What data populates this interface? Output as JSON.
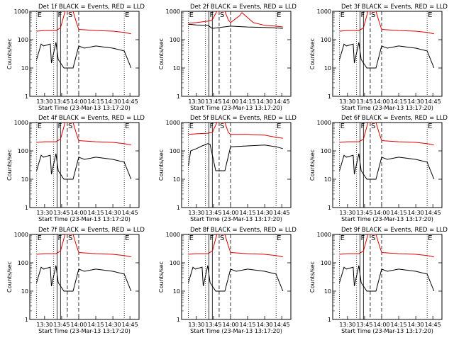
{
  "figure": {
    "title_suffix": " BLACK = Events, RED = LLD",
    "xlabel": "Start Time (23-Mar-13 13:17:20)",
    "ylabel": "Counts/sec"
  },
  "flag_labels": {
    "E": "E",
    "F": "F",
    "S": "S"
  },
  "colors": {
    "events": "#000000",
    "lld": "#dd0000"
  },
  "chart_data": [
    {
      "type": "line",
      "title": "Det 1f BLACK = Events, RED = LLD",
      "xlabel": "Start Time (23-Mar-13 13:17:20)",
      "ylabel": "Counts/sec",
      "yscale": "log",
      "ylim": [
        1,
        1000
      ],
      "yticks": [
        "1",
        "10",
        "100",
        "1000"
      ],
      "xticks": [
        "13:30",
        "13:45",
        "14:00",
        "14:15",
        "14:30",
        "14:45"
      ],
      "xlim": [
        "13:17",
        "14:53"
      ],
      "series": [
        {
          "name": "BLACK = Events",
          "color": "#000000",
          "x": [
            "13:23",
            "13:27",
            "13:29",
            "13:35",
            "13:36",
            "13:40",
            "13:42",
            "13:47",
            "13:55",
            "14:00",
            "14:05",
            "14:15",
            "14:30",
            "14:40",
            "14:46"
          ],
          "y": [
            20,
            70,
            60,
            70,
            15,
            80,
            20,
            10,
            10,
            60,
            50,
            60,
            50,
            40,
            10
          ]
        },
        {
          "name": "RED = LLD",
          "color": "#dd0000",
          "x": [
            "13:23",
            "13:30",
            "13:40",
            "13:44",
            "13:48",
            "13:51",
            "13:55",
            "13:58",
            "14:00",
            "14:15",
            "14:30",
            "14:40",
            "14:46"
          ],
          "y": [
            200,
            210,
            210,
            260,
            1000,
            1000,
            1000,
            400,
            230,
            210,
            200,
            180,
            160
          ]
        }
      ]
    },
    {
      "type": "line",
      "title": "Det 2f BLACK = Events, RED = LLD",
      "xlabel": "Start Time (23-Mar-13 13:17:20)",
      "ylabel": "Counts/sec",
      "yscale": "log",
      "ylim": [
        1,
        1000
      ],
      "yticks": [
        "1",
        "10",
        "100",
        "1000"
      ],
      "xticks": [
        "13:30",
        "13:45",
        "14:00",
        "14:15",
        "14:30",
        "14:45"
      ],
      "xlim": [
        "13:17",
        "14:53"
      ],
      "series": [
        {
          "name": "BLACK = Events",
          "color": "#000000",
          "x": [
            "13:23",
            "13:30",
            "13:40",
            "13:44",
            "14:00",
            "14:15",
            "14:30",
            "14:40",
            "14:46"
          ],
          "y": [
            350,
            330,
            320,
            250,
            300,
            280,
            270,
            260,
            250
          ]
        },
        {
          "name": "RED = LLD",
          "color": "#dd0000",
          "x": [
            "13:23",
            "13:30",
            "13:40",
            "13:44",
            "13:48",
            "13:51",
            "13:55",
            "13:58",
            "14:00",
            "14:08",
            "14:10",
            "14:15",
            "14:20",
            "14:30",
            "14:40",
            "14:46"
          ],
          "y": [
            380,
            400,
            450,
            500,
            1000,
            1000,
            1000,
            500,
            400,
            700,
            900,
            600,
            400,
            320,
            300,
            280
          ]
        }
      ]
    },
    {
      "type": "line",
      "title": "Det 3f BLACK = Events, RED = LLD",
      "xlabel": "Start Time (23-Mar-13 13:17:20)",
      "ylabel": "Counts/sec",
      "yscale": "log",
      "ylim": [
        1,
        1000
      ],
      "yticks": [
        "1",
        "10",
        "100",
        "1000"
      ],
      "xticks": [
        "13:30",
        "13:45",
        "14:00",
        "14:15",
        "14:30",
        "14:45"
      ],
      "xlim": [
        "13:17",
        "14:53"
      ],
      "series": [
        {
          "name": "BLACK = Events",
          "color": "#000000",
          "x": [
            "13:23",
            "13:27",
            "13:29",
            "13:35",
            "13:36",
            "13:40",
            "13:42",
            "13:47",
            "13:55",
            "14:00",
            "14:05",
            "14:15",
            "14:30",
            "14:40",
            "14:46"
          ],
          "y": [
            20,
            70,
            60,
            70,
            15,
            80,
            20,
            10,
            10,
            60,
            50,
            60,
            50,
            40,
            10
          ]
        },
        {
          "name": "RED = LLD",
          "color": "#dd0000",
          "x": [
            "13:23",
            "13:30",
            "13:40",
            "13:44",
            "13:48",
            "13:51",
            "13:55",
            "13:58",
            "14:00",
            "14:15",
            "14:30",
            "14:40",
            "14:46"
          ],
          "y": [
            200,
            210,
            210,
            260,
            1000,
            1000,
            1000,
            400,
            230,
            210,
            200,
            180,
            160
          ]
        }
      ]
    },
    {
      "type": "line",
      "title": "Det 4f BLACK = Events, RED = LLD",
      "xlabel": "Start Time (23-Mar-13 13:17:20)",
      "ylabel": "Counts/sec",
      "yscale": "log",
      "ylim": [
        1,
        1000
      ],
      "yticks": [
        "1",
        "10",
        "100",
        "1000"
      ],
      "xticks": [
        "13:30",
        "13:45",
        "14:00",
        "14:15",
        "14:30",
        "14:45"
      ],
      "xlim": [
        "13:17",
        "14:53"
      ],
      "series": [
        {
          "name": "BLACK = Events",
          "color": "#000000",
          "x": [
            "13:23",
            "13:27",
            "13:29",
            "13:35",
            "13:36",
            "13:40",
            "13:42",
            "13:47",
            "13:55",
            "14:00",
            "14:05",
            "14:15",
            "14:30",
            "14:40",
            "14:46"
          ],
          "y": [
            20,
            70,
            60,
            70,
            15,
            80,
            20,
            10,
            10,
            60,
            50,
            60,
            50,
            40,
            10
          ]
        },
        {
          "name": "RED = LLD",
          "color": "#dd0000",
          "x": [
            "13:23",
            "13:30",
            "13:40",
            "13:44",
            "13:48",
            "13:51",
            "13:55",
            "13:58",
            "14:00",
            "14:15",
            "14:30",
            "14:40",
            "14:46"
          ],
          "y": [
            200,
            210,
            210,
            260,
            1000,
            1000,
            1000,
            400,
            230,
            210,
            200,
            180,
            160
          ]
        }
      ]
    },
    {
      "type": "line",
      "title": "Det 5f BLACK = Events, RED = LLD",
      "xlabel": "Start Time (23-Mar-13 13:17:20)",
      "ylabel": "Counts/sec",
      "yscale": "log",
      "ylim": [
        1,
        1000
      ],
      "yticks": [
        "1",
        "10",
        "100",
        "1000"
      ],
      "xticks": [
        "13:30",
        "13:45",
        "14:00",
        "14:15",
        "14:30",
        "14:45"
      ],
      "xlim": [
        "13:17",
        "14:53"
      ],
      "series": [
        {
          "name": "BLACK = Events",
          "color": "#000000",
          "x": [
            "13:23",
            "13:25",
            "13:30",
            "13:35",
            "13:40",
            "13:42",
            "13:47",
            "13:55",
            "14:00",
            "14:15",
            "14:30",
            "14:40",
            "14:46"
          ],
          "y": [
            30,
            100,
            120,
            150,
            180,
            170,
            20,
            20,
            140,
            150,
            160,
            140,
            120
          ]
        },
        {
          "name": "RED = LLD",
          "color": "#dd0000",
          "x": [
            "13:23",
            "13:30",
            "13:40",
            "13:44",
            "13:48",
            "13:51",
            "13:55",
            "13:58",
            "14:00",
            "14:15",
            "14:30",
            "14:40",
            "14:46"
          ],
          "y": [
            380,
            400,
            420,
            450,
            1000,
            1000,
            1000,
            450,
            380,
            380,
            360,
            300,
            280
          ]
        }
      ]
    },
    {
      "type": "line",
      "title": "Det 6f BLACK = Events, RED = LLD",
      "xlabel": "Start Time (23-Mar-13 13:17:20)",
      "ylabel": "Counts/sec",
      "yscale": "log",
      "ylim": [
        1,
        1000
      ],
      "yticks": [
        "1",
        "10",
        "100",
        "1000"
      ],
      "xticks": [
        "13:30",
        "13:45",
        "14:00",
        "14:15",
        "14:30",
        "14:45"
      ],
      "xlim": [
        "13:17",
        "14:53"
      ],
      "series": [
        {
          "name": "BLACK = Events",
          "color": "#000000",
          "x": [
            "13:23",
            "13:27",
            "13:29",
            "13:35",
            "13:36",
            "13:40",
            "13:42",
            "13:47",
            "13:55",
            "14:00",
            "14:05",
            "14:15",
            "14:30",
            "14:40",
            "14:46"
          ],
          "y": [
            20,
            70,
            60,
            70,
            15,
            80,
            20,
            10,
            10,
            60,
            50,
            60,
            50,
            40,
            10
          ]
        },
        {
          "name": "RED = LLD",
          "color": "#dd0000",
          "x": [
            "13:23",
            "13:30",
            "13:40",
            "13:44",
            "13:48",
            "13:51",
            "13:55",
            "13:58",
            "14:00",
            "14:15",
            "14:30",
            "14:40",
            "14:46"
          ],
          "y": [
            200,
            210,
            210,
            260,
            1000,
            1000,
            1000,
            400,
            230,
            210,
            200,
            180,
            160
          ]
        }
      ]
    },
    {
      "type": "line",
      "title": "Det 7f BLACK = Events, RED = LLD",
      "xlabel": "Start Time (23-Mar-13 13:17:20)",
      "ylabel": "Counts/sec",
      "yscale": "log",
      "ylim": [
        1,
        1000
      ],
      "yticks": [
        "1",
        "10",
        "100",
        "1000"
      ],
      "xticks": [
        "13:30",
        "13:45",
        "14:00",
        "14:15",
        "14:30",
        "14:45"
      ],
      "xlim": [
        "13:17",
        "14:53"
      ],
      "series": [
        {
          "name": "BLACK = Events",
          "color": "#000000",
          "x": [
            "13:23",
            "13:27",
            "13:29",
            "13:35",
            "13:36",
            "13:40",
            "13:42",
            "13:47",
            "13:55",
            "14:00",
            "14:05",
            "14:15",
            "14:30",
            "14:40",
            "14:46"
          ],
          "y": [
            20,
            70,
            60,
            70,
            15,
            80,
            20,
            10,
            10,
            60,
            50,
            60,
            50,
            40,
            10
          ]
        },
        {
          "name": "RED = LLD",
          "color": "#dd0000",
          "x": [
            "13:23",
            "13:30",
            "13:40",
            "13:44",
            "13:48",
            "13:51",
            "13:55",
            "13:58",
            "14:00",
            "14:15",
            "14:30",
            "14:40",
            "14:46"
          ],
          "y": [
            200,
            210,
            210,
            260,
            1000,
            1000,
            1000,
            400,
            230,
            210,
            200,
            180,
            160
          ]
        }
      ]
    },
    {
      "type": "line",
      "title": "Det 8f BLACK = Events, RED = LLD",
      "xlabel": "Start Time (23-Mar-13 13:17:20)",
      "ylabel": "Counts/sec",
      "yscale": "log",
      "ylim": [
        1,
        1000
      ],
      "yticks": [
        "1",
        "10",
        "100",
        "1000"
      ],
      "xticks": [
        "13:30",
        "13:45",
        "14:00",
        "14:15",
        "14:30",
        "14:45"
      ],
      "xlim": [
        "13:17",
        "14:53"
      ],
      "series": [
        {
          "name": "BLACK = Events",
          "color": "#000000",
          "x": [
            "13:23",
            "13:27",
            "13:29",
            "13:35",
            "13:36",
            "13:40",
            "13:42",
            "13:47",
            "13:55",
            "14:00",
            "14:05",
            "14:15",
            "14:30",
            "14:40",
            "14:46"
          ],
          "y": [
            20,
            70,
            60,
            70,
            15,
            80,
            20,
            10,
            10,
            60,
            50,
            60,
            50,
            40,
            10
          ]
        },
        {
          "name": "RED = LLD",
          "color": "#dd0000",
          "x": [
            "13:23",
            "13:30",
            "13:40",
            "13:44",
            "13:48",
            "13:51",
            "13:55",
            "13:58",
            "14:00",
            "14:15",
            "14:30",
            "14:40",
            "14:46"
          ],
          "y": [
            200,
            210,
            210,
            260,
            1000,
            1000,
            1000,
            400,
            230,
            210,
            200,
            180,
            160
          ]
        }
      ]
    },
    {
      "type": "line",
      "title": "Det 9f BLACK = Events, RED = LLD",
      "xlabel": "Start Time (23-Mar-13 13:17:20)",
      "ylabel": "Counts/sec",
      "yscale": "log",
      "ylim": [
        1,
        1000
      ],
      "yticks": [
        "1",
        "10",
        "100",
        "1000"
      ],
      "xticks": [
        "13:30",
        "13:45",
        "14:00",
        "14:15",
        "14:30",
        "14:45"
      ],
      "xlim": [
        "13:17",
        "14:53"
      ],
      "series": [
        {
          "name": "BLACK = Events",
          "color": "#000000",
          "x": [
            "13:23",
            "13:27",
            "13:29",
            "13:35",
            "13:36",
            "13:40",
            "13:42",
            "13:47",
            "13:55",
            "14:00",
            "14:05",
            "14:15",
            "14:30",
            "14:40",
            "14:46"
          ],
          "y": [
            20,
            70,
            60,
            70,
            15,
            80,
            20,
            10,
            10,
            60,
            50,
            60,
            50,
            40,
            10
          ]
        },
        {
          "name": "RED = LLD",
          "color": "#dd0000",
          "x": [
            "13:23",
            "13:30",
            "13:40",
            "13:44",
            "13:48",
            "13:51",
            "13:55",
            "13:58",
            "14:00",
            "14:15",
            "14:30",
            "14:40",
            "14:46"
          ],
          "y": [
            200,
            210,
            210,
            260,
            1000,
            1000,
            1000,
            400,
            230,
            210,
            200,
            180,
            160
          ]
        }
      ]
    }
  ]
}
